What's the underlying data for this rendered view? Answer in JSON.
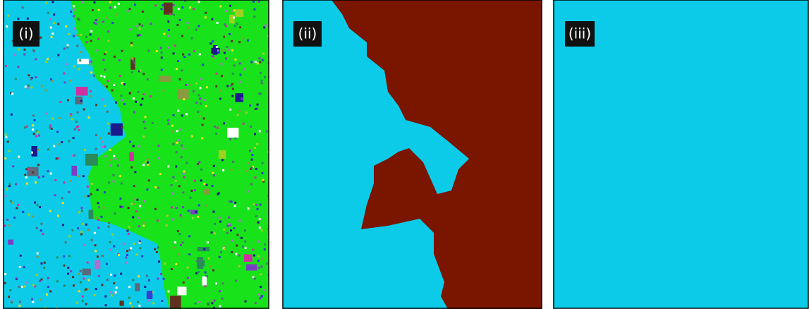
{
  "panels": [
    {
      "label": "(i)"
    },
    {
      "label": "(ii)"
    },
    {
      "label": "(iii)"
    }
  ]
}
